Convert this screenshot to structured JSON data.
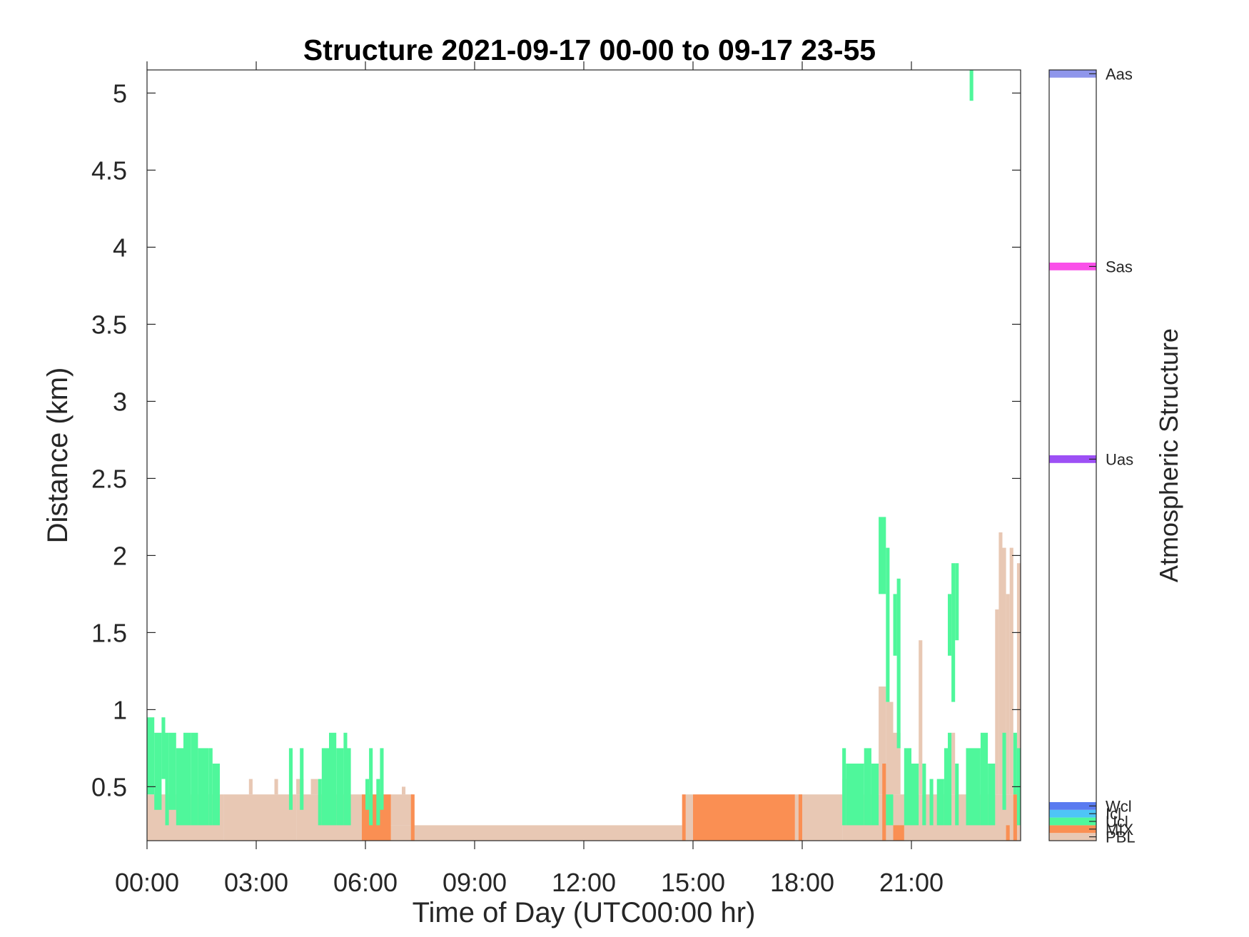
{
  "chart_data": {
    "type": "heatmap",
    "title": "Structure 2021-09-17 00-00 to 09-17 23-55",
    "xlabel": "Time of Day (UTC00:00 hr)",
    "ylabel": "Distance (km)",
    "xlim": [
      0,
      24
    ],
    "ylim": [
      0.15,
      5.15
    ],
    "x_ticks": [
      "00:00",
      "03:00",
      "06:00",
      "09:00",
      "12:00",
      "15:00",
      "18:00",
      "21:00"
    ],
    "y_ticks": [
      "0.5",
      "1",
      "1.5",
      "2",
      "2.5",
      "3",
      "3.5",
      "4",
      "4.5",
      "5"
    ],
    "x_unit": "hours",
    "y_unit": "km",
    "grid": false,
    "colorbar": {
      "label": "Atmospheric Structure",
      "classes": [
        {
          "name": "PBL",
          "color": "#e8c8b4"
        },
        {
          "name": "MIX",
          "color": "#fa8f53"
        },
        {
          "name": "Ucl",
          "color": "#4ff79b"
        },
        {
          "name": "Icl",
          "color": "#4ec5f7"
        },
        {
          "name": "Wcl",
          "color": "#5a7bf0"
        },
        {
          "name": "Uas",
          "color": "#9d50f5"
        },
        {
          "name": "Sas",
          "color": "#fa50e9"
        },
        {
          "name": "Aas",
          "color": "#8f96eb"
        }
      ]
    },
    "series": [
      {
        "class": "PBL",
        "rects": [
          [
            0.0,
            2.1,
            0.15,
            0.45
          ],
          [
            2.1,
            4.1,
            0.15,
            0.45
          ],
          [
            2.8,
            2.9,
            0.45,
            0.55
          ],
          [
            3.5,
            3.6,
            0.45,
            0.55
          ],
          [
            4.1,
            5.9,
            0.15,
            0.45
          ],
          [
            4.1,
            4.3,
            0.45,
            0.55
          ],
          [
            4.5,
            4.7,
            0.45,
            0.55
          ],
          [
            6.7,
            14.7,
            0.15,
            0.25
          ],
          [
            6.7,
            7.3,
            0.25,
            0.45
          ],
          [
            7.0,
            7.1,
            0.45,
            0.5
          ],
          [
            14.8,
            15.0,
            0.15,
            0.45
          ],
          [
            17.8,
            18.0,
            0.15,
            0.45
          ],
          [
            18.0,
            19.1,
            0.15,
            0.45
          ],
          [
            19.1,
            24.0,
            0.15,
            0.45
          ],
          [
            19.1,
            19.3,
            0.45,
            0.55
          ],
          [
            20.1,
            20.3,
            0.45,
            1.15
          ],
          [
            20.3,
            20.5,
            0.45,
            1.05
          ],
          [
            20.5,
            20.7,
            0.45,
            0.85
          ],
          [
            21.2,
            21.3,
            0.45,
            1.45
          ],
          [
            22.1,
            22.2,
            0.45,
            0.85
          ],
          [
            23.3,
            23.4,
            0.45,
            1.65
          ],
          [
            23.4,
            23.5,
            0.45,
            2.15
          ],
          [
            23.5,
            23.6,
            0.45,
            2.05
          ],
          [
            23.6,
            23.7,
            0.45,
            1.75
          ],
          [
            23.7,
            23.8,
            0.45,
            2.05
          ],
          [
            23.9,
            24.0,
            0.45,
            1.95
          ]
        ]
      },
      {
        "class": "MIX",
        "rects": [
          [
            5.9,
            6.7,
            0.15,
            0.45
          ],
          [
            7.25,
            7.35,
            0.15,
            0.45
          ],
          [
            14.7,
            14.8,
            0.15,
            0.45
          ],
          [
            15.0,
            17.8,
            0.15,
            0.45
          ],
          [
            17.9,
            18.0,
            0.15,
            0.45
          ],
          [
            20.2,
            20.3,
            0.15,
            0.65
          ],
          [
            20.5,
            20.8,
            0.15,
            0.25
          ],
          [
            23.6,
            23.7,
            0.15,
            0.25
          ],
          [
            23.8,
            23.9,
            0.15,
            0.45
          ]
        ]
      },
      {
        "class": "Ucl",
        "rects": [
          [
            0.0,
            0.2,
            0.45,
            0.95
          ],
          [
            0.2,
            0.4,
            0.35,
            0.85
          ],
          [
            0.4,
            0.5,
            0.55,
            0.95
          ],
          [
            0.5,
            0.6,
            0.25,
            0.85
          ],
          [
            0.6,
            0.8,
            0.35,
            0.85
          ],
          [
            0.8,
            1.0,
            0.25,
            0.75
          ],
          [
            1.0,
            1.2,
            0.25,
            0.85
          ],
          [
            1.2,
            1.4,
            0.25,
            0.85
          ],
          [
            1.4,
            1.7,
            0.25,
            0.75
          ],
          [
            1.7,
            1.8,
            0.25,
            0.75
          ],
          [
            1.8,
            2.0,
            0.25,
            0.65
          ],
          [
            3.9,
            4.0,
            0.35,
            0.75
          ],
          [
            4.2,
            4.3,
            0.35,
            0.75
          ],
          [
            4.7,
            4.8,
            0.25,
            0.55
          ],
          [
            4.8,
            5.0,
            0.25,
            0.75
          ],
          [
            5.0,
            5.2,
            0.25,
            0.85
          ],
          [
            5.2,
            5.4,
            0.25,
            0.75
          ],
          [
            5.4,
            5.5,
            0.25,
            0.85
          ],
          [
            5.5,
            5.6,
            0.25,
            0.75
          ],
          [
            6.0,
            6.1,
            0.35,
            0.55
          ],
          [
            6.1,
            6.2,
            0.25,
            0.75
          ],
          [
            6.3,
            6.4,
            0.25,
            0.55
          ],
          [
            6.4,
            6.5,
            0.35,
            0.75
          ],
          [
            19.1,
            19.2,
            0.25,
            0.75
          ],
          [
            19.2,
            19.7,
            0.25,
            0.65
          ],
          [
            19.7,
            19.9,
            0.25,
            0.75
          ],
          [
            19.9,
            20.1,
            0.25,
            0.65
          ],
          [
            20.1,
            20.3,
            1.75,
            2.25
          ],
          [
            20.3,
            20.4,
            1.05,
            2.05
          ],
          [
            20.3,
            20.5,
            0.25,
            0.45
          ],
          [
            20.5,
            20.6,
            1.35,
            1.75
          ],
          [
            20.6,
            20.7,
            0.75,
            1.85
          ],
          [
            20.8,
            21.0,
            0.25,
            0.75
          ],
          [
            21.0,
            21.2,
            0.25,
            0.65
          ],
          [
            21.3,
            21.4,
            0.25,
            0.65
          ],
          [
            21.5,
            21.6,
            0.25,
            0.55
          ],
          [
            21.7,
            21.9,
            0.25,
            0.55
          ],
          [
            21.9,
            22.0,
            0.25,
            0.75
          ],
          [
            22.0,
            22.1,
            0.25,
            0.85
          ],
          [
            22.2,
            22.3,
            0.25,
            0.65
          ],
          [
            22.1,
            22.2,
            1.05,
            1.95
          ],
          [
            22.2,
            22.3,
            1.45,
            1.95
          ],
          [
            22.0,
            22.1,
            1.35,
            1.75
          ],
          [
            22.5,
            22.9,
            0.25,
            0.75
          ],
          [
            22.9,
            23.1,
            0.25,
            0.85
          ],
          [
            23.1,
            23.3,
            0.25,
            0.65
          ],
          [
            23.5,
            23.6,
            0.35,
            0.85
          ],
          [
            23.8,
            23.9,
            0.45,
            0.85
          ],
          [
            23.9,
            24.0,
            0.25,
            0.75
          ],
          [
            22.6,
            22.7,
            4.95,
            5.15
          ]
        ]
      }
    ]
  }
}
